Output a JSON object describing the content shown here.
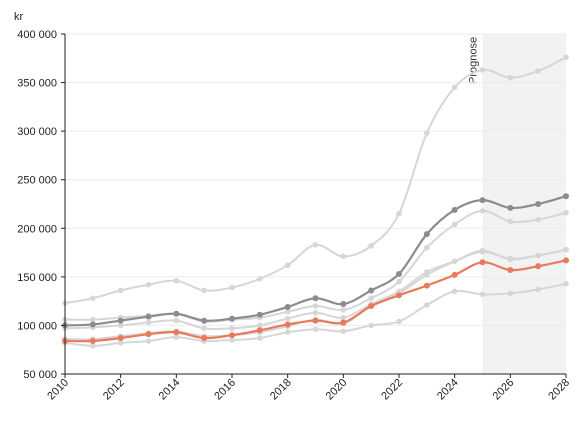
{
  "chart_data": {
    "type": "line",
    "title": "",
    "ylabel": "kr",
    "xlabel": "",
    "xlim": [
      2010,
      2028
    ],
    "ylim": [
      50000,
      400000
    ],
    "x_ticks": [
      2010,
      2012,
      2014,
      2016,
      2018,
      2020,
      2022,
      2024,
      2026,
      2028
    ],
    "y_ticks": [
      50000,
      100000,
      150000,
      200000,
      250000,
      300000,
      350000,
      400000
    ],
    "y_tick_labels": [
      "50 000",
      "100 000",
      "150 000",
      "200 000",
      "250 000",
      "300 000",
      "350 000",
      "400 000"
    ],
    "grid": "horizontal",
    "forecast": {
      "label": "Prognose",
      "from": 2025,
      "to": 2028
    },
    "x": [
      2010,
      2011,
      2012,
      2013,
      2014,
      2015,
      2016,
      2017,
      2018,
      2019,
      2020,
      2021,
      2022,
      2023,
      2024,
      2025,
      2026,
      2027,
      2028
    ],
    "series": [
      {
        "values": [
          123000,
          128000,
          136000,
          142000,
          146000,
          136000,
          139000,
          148000,
          162000,
          183000,
          171000,
          182000,
          215000,
          298000,
          345000,
          363000,
          355000,
          362000,
          376000
        ],
        "color": "#d6d6d6"
      },
      {
        "values": [
          106000,
          106000,
          108000,
          110000,
          112000,
          104000,
          106000,
          108000,
          114000,
          120000,
          116000,
          128000,
          145000,
          180000,
          204000,
          218000,
          207000,
          209000,
          216000
        ],
        "color": "#d6d6d6"
      },
      {
        "values": [
          97000,
          98000,
          100000,
          103000,
          105000,
          97000,
          97000,
          100000,
          107000,
          113000,
          108000,
          122000,
          135000,
          155000,
          166000,
          176000,
          169000,
          172000,
          178000
        ],
        "color": "#d6d6d6"
      },
      {
        "values": [
          86000,
          86000,
          89000,
          92000,
          94000,
          89000,
          90000,
          93000,
          99000,
          106000,
          102000,
          120000,
          133000,
          152000,
          166000,
          177000,
          168000,
          172000,
          178000
        ],
        "color": "#d6d6d6"
      },
      {
        "values": [
          82000,
          79000,
          82000,
          84000,
          88000,
          84000,
          85000,
          87000,
          93000,
          96000,
          94000,
          100000,
          104000,
          121000,
          135000,
          132000,
          133000,
          137000,
          143000
        ],
        "color": "#d6d6d6"
      },
      {
        "values": [
          100000,
          101000,
          105000,
          109000,
          112000,
          105000,
          107000,
          111000,
          119000,
          128000,
          122000,
          136000,
          153000,
          194000,
          219000,
          229000,
          221000,
          225000,
          233000
        ],
        "color": "#8c8c8c"
      },
      {
        "values": [
          84000,
          84000,
          87000,
          91000,
          93000,
          87000,
          90000,
          95000,
          101000,
          105000,
          103000,
          120000,
          131000,
          141000,
          152000,
          165000,
          157000,
          161000,
          167000
        ],
        "color": "#e8795a"
      }
    ]
  }
}
